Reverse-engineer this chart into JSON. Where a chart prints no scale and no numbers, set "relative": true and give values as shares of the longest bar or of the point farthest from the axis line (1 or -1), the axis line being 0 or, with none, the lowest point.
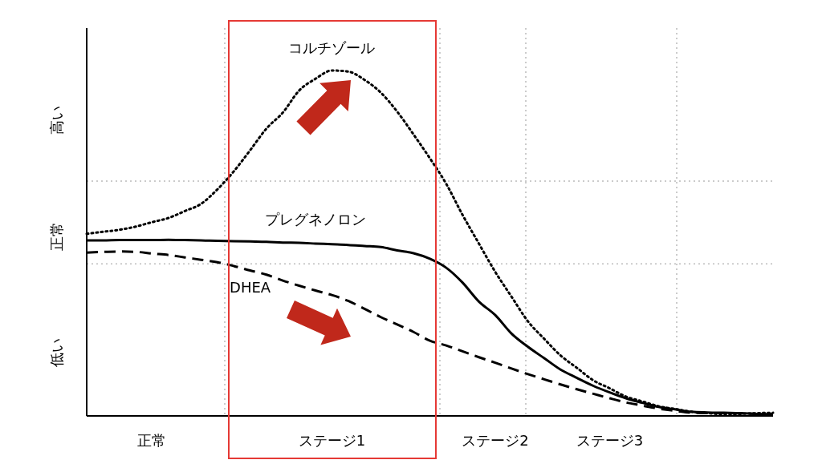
{
  "chart_data": {
    "type": "line",
    "relative": true,
    "categories": [
      null,
      null,
      null,
      null,
      "正常",
      null,
      null,
      null,
      null,
      null,
      null,
      null,
      null,
      null,
      null,
      "ステージ1",
      null,
      null,
      null,
      null,
      null,
      null,
      null,
      null,
      null,
      "ステージ2",
      null,
      null,
      null,
      null,
      null,
      null,
      "ステージ3",
      null,
      null,
      null,
      null,
      null,
      null,
      null,
      null,
      null,
      null
    ],
    "series": [
      {
        "name": "コルチゾール",
        "color": "#000000",
        "line_style": "dotted",
        "values": [
          0.527,
          0.533,
          0.539,
          0.548,
          0.561,
          0.573,
          0.593,
          0.614,
          0.656,
          0.708,
          0.769,
          0.832,
          0.878,
          0.942,
          0.976,
          1,
          0.997,
          0.973,
          0.936,
          0.881,
          0.815,
          0.746,
          0.672,
          0.582,
          0.499,
          0.417,
          0.345,
          0.274,
          0.223,
          0.175,
          0.139,
          0.103,
          0.08,
          0.056,
          0.042,
          0.028,
          0.02,
          0.012,
          0.008,
          0.005,
          0.006,
          0.008,
          0.009
        ]
      },
      {
        "name": "プレグネノロン",
        "color": "#000000",
        "line_style": "solid",
        "values": [
          0.508,
          0.508,
          0.509,
          0.509,
          0.509,
          0.51,
          0.509,
          0.508,
          0.507,
          0.506,
          0.505,
          0.504,
          0.502,
          0.501,
          0.499,
          0.497,
          0.495,
          0.492,
          0.489,
          0.479,
          0.471,
          0.455,
          0.429,
          0.386,
          0.331,
          0.292,
          0.238,
          0.2,
          0.167,
          0.134,
          0.11,
          0.087,
          0.068,
          0.051,
          0.038,
          0.026,
          0.019,
          0.012,
          0.01,
          0.009,
          0.008,
          0.006,
          0.005
        ]
      },
      {
        "name": "DHEA",
        "color": "#000000",
        "line_style": "dashed",
        "values": [
          0.473,
          0.475,
          0.476,
          0.475,
          0.47,
          0.466,
          0.459,
          0.452,
          0.445,
          0.434,
          0.421,
          0.409,
          0.392,
          0.377,
          0.363,
          0.35,
          0.333,
          0.31,
          0.286,
          0.265,
          0.243,
          0.218,
          0.204,
          0.187,
          0.17,
          0.154,
          0.137,
          0.121,
          0.106,
          0.091,
          0.077,
          0.064,
          0.051,
          0.039,
          0.03,
          0.021,
          0.015,
          0.009,
          0.008,
          0.008,
          0.007,
          0.006,
          0.005
        ]
      }
    ],
    "ref_lines": [
      {
        "axis": "y",
        "value": 0.44,
        "color": "#bbbbbb",
        "line_style": "dotted"
      },
      {
        "axis": "y",
        "value": 0.68,
        "color": "#bbbbbb",
        "line_style": "dotted"
      }
    ],
    "annotations": [
      "高い",
      "正常",
      "低い"
    ]
  }
}
